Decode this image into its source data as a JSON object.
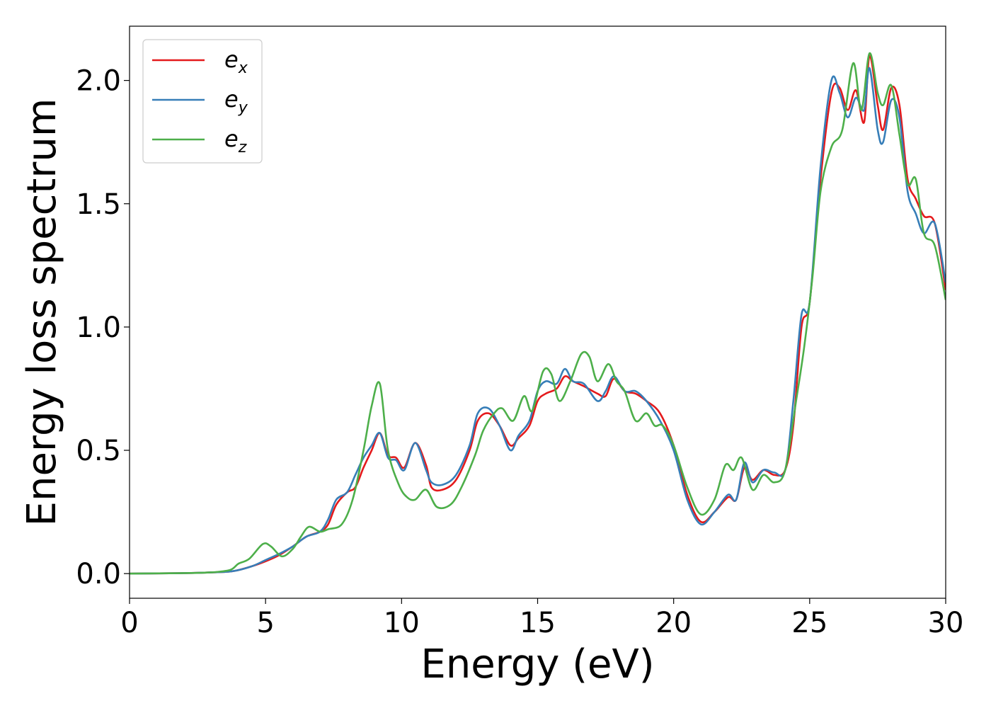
{
  "chart_data": {
    "type": "line",
    "xlabel": "Energy (eV)",
    "ylabel": "Energy loss spectrum",
    "xlim": [
      0,
      30
    ],
    "ylim": [
      -0.1,
      2.22
    ],
    "xticks": [
      0,
      5,
      10,
      15,
      20,
      25,
      30
    ],
    "xtick_labels": [
      "0",
      "5",
      "10",
      "15",
      "20",
      "25",
      "30"
    ],
    "yticks": [
      0.0,
      0.5,
      1.0,
      1.5,
      2.0
    ],
    "ytick_labels": [
      "0.0",
      "0.5",
      "1.0",
      "1.5",
      "2.0"
    ],
    "grid": false,
    "legend": {
      "position": "top-left"
    },
    "series": [
      {
        "name": "e_x",
        "base": "e",
        "sub": "x",
        "color": "#e41a1c",
        "points": [
          [
            0,
            0
          ],
          [
            2,
            0.002
          ],
          [
            3,
            0.005
          ],
          [
            3.8,
            0.01
          ],
          [
            4.5,
            0.03
          ],
          [
            5,
            0.05
          ],
          [
            5.5,
            0.075
          ],
          [
            6,
            0.11
          ],
          [
            6.5,
            0.15
          ],
          [
            7,
            0.17
          ],
          [
            7.3,
            0.2
          ],
          [
            7.6,
            0.28
          ],
          [
            8,
            0.33
          ],
          [
            8.3,
            0.35
          ],
          [
            8.6,
            0.43
          ],
          [
            8.9,
            0.5
          ],
          [
            9.2,
            0.57
          ],
          [
            9.5,
            0.48
          ],
          [
            9.8,
            0.47
          ],
          [
            10.1,
            0.43
          ],
          [
            10.5,
            0.53
          ],
          [
            10.9,
            0.44
          ],
          [
            11.1,
            0.35
          ],
          [
            11.5,
            0.34
          ],
          [
            12,
            0.38
          ],
          [
            12.5,
            0.5
          ],
          [
            12.8,
            0.62
          ],
          [
            13.2,
            0.65
          ],
          [
            13.6,
            0.6
          ],
          [
            14,
            0.52
          ],
          [
            14.3,
            0.55
          ],
          [
            14.7,
            0.6
          ],
          [
            15,
            0.7
          ],
          [
            15.3,
            0.73
          ],
          [
            15.7,
            0.75
          ],
          [
            16,
            0.8
          ],
          [
            16.3,
            0.78
          ],
          [
            16.7,
            0.76
          ],
          [
            17.2,
            0.73
          ],
          [
            17.5,
            0.72
          ],
          [
            17.8,
            0.79
          ],
          [
            18.2,
            0.74
          ],
          [
            18.6,
            0.73
          ],
          [
            19,
            0.7
          ],
          [
            19.5,
            0.65
          ],
          [
            20,
            0.52
          ],
          [
            20.5,
            0.32
          ],
          [
            21,
            0.21
          ],
          [
            21.5,
            0.25
          ],
          [
            22,
            0.31
          ],
          [
            22.3,
            0.3
          ],
          [
            22.6,
            0.43
          ],
          [
            22.9,
            0.38
          ],
          [
            23.3,
            0.42
          ],
          [
            23.7,
            0.4
          ],
          [
            24.1,
            0.42
          ],
          [
            24.4,
            0.6
          ],
          [
            24.7,
            1.0
          ],
          [
            25,
            1.1
          ],
          [
            25.4,
            1.6
          ],
          [
            25.8,
            1.95
          ],
          [
            26.1,
            1.97
          ],
          [
            26.4,
            1.88
          ],
          [
            26.7,
            1.96
          ],
          [
            27,
            1.83
          ],
          [
            27.2,
            2.1
          ],
          [
            27.5,
            1.9
          ],
          [
            27.7,
            1.8
          ],
          [
            28,
            1.97
          ],
          [
            28.3,
            1.9
          ],
          [
            28.6,
            1.6
          ],
          [
            28.9,
            1.52
          ],
          [
            29.2,
            1.45
          ],
          [
            29.6,
            1.42
          ],
          [
            30,
            1.15
          ]
        ]
      },
      {
        "name": "e_y",
        "base": "e",
        "sub": "y",
        "color": "#377eb8",
        "points": [
          [
            0,
            0
          ],
          [
            2,
            0.002
          ],
          [
            3,
            0.005
          ],
          [
            3.8,
            0.01
          ],
          [
            4.5,
            0.03
          ],
          [
            5,
            0.055
          ],
          [
            5.5,
            0.08
          ],
          [
            6,
            0.11
          ],
          [
            6.5,
            0.15
          ],
          [
            7,
            0.17
          ],
          [
            7.3,
            0.22
          ],
          [
            7.6,
            0.3
          ],
          [
            8,
            0.33
          ],
          [
            8.3,
            0.4
          ],
          [
            8.6,
            0.47
          ],
          [
            8.9,
            0.52
          ],
          [
            9.2,
            0.57
          ],
          [
            9.5,
            0.47
          ],
          [
            9.8,
            0.46
          ],
          [
            10.1,
            0.42
          ],
          [
            10.5,
            0.53
          ],
          [
            10.9,
            0.42
          ],
          [
            11.1,
            0.37
          ],
          [
            11.5,
            0.36
          ],
          [
            12,
            0.4
          ],
          [
            12.5,
            0.52
          ],
          [
            12.8,
            0.65
          ],
          [
            13.2,
            0.67
          ],
          [
            13.6,
            0.6
          ],
          [
            14,
            0.5
          ],
          [
            14.3,
            0.56
          ],
          [
            14.7,
            0.62
          ],
          [
            15,
            0.74
          ],
          [
            15.3,
            0.78
          ],
          [
            15.7,
            0.77
          ],
          [
            16,
            0.83
          ],
          [
            16.3,
            0.78
          ],
          [
            16.7,
            0.77
          ],
          [
            17.2,
            0.7
          ],
          [
            17.5,
            0.74
          ],
          [
            17.8,
            0.8
          ],
          [
            18.2,
            0.74
          ],
          [
            18.6,
            0.74
          ],
          [
            19,
            0.7
          ],
          [
            19.5,
            0.62
          ],
          [
            20,
            0.5
          ],
          [
            20.5,
            0.3
          ],
          [
            21,
            0.2
          ],
          [
            21.5,
            0.25
          ],
          [
            22,
            0.32
          ],
          [
            22.3,
            0.3
          ],
          [
            22.6,
            0.45
          ],
          [
            22.9,
            0.37
          ],
          [
            23.3,
            0.42
          ],
          [
            23.7,
            0.41
          ],
          [
            24.1,
            0.42
          ],
          [
            24.4,
            0.7
          ],
          [
            24.7,
            1.05
          ],
          [
            25,
            1.1
          ],
          [
            25.4,
            1.65
          ],
          [
            25.8,
            2.0
          ],
          [
            26.1,
            1.95
          ],
          [
            26.4,
            1.85
          ],
          [
            26.7,
            1.93
          ],
          [
            27,
            1.88
          ],
          [
            27.2,
            2.05
          ],
          [
            27.5,
            1.8
          ],
          [
            27.7,
            1.75
          ],
          [
            28,
            1.92
          ],
          [
            28.3,
            1.85
          ],
          [
            28.6,
            1.55
          ],
          [
            28.9,
            1.46
          ],
          [
            29.2,
            1.38
          ],
          [
            29.6,
            1.42
          ],
          [
            30,
            1.18
          ]
        ]
      },
      {
        "name": "e_z",
        "base": "e",
        "sub": "z",
        "color": "#4daf4a",
        "points": [
          [
            0,
            0
          ],
          [
            2,
            0.002
          ],
          [
            3,
            0.005
          ],
          [
            3.7,
            0.015
          ],
          [
            4,
            0.04
          ],
          [
            4.4,
            0.06
          ],
          [
            4.9,
            0.12
          ],
          [
            5.2,
            0.11
          ],
          [
            5.6,
            0.07
          ],
          [
            6,
            0.1
          ],
          [
            6.3,
            0.15
          ],
          [
            6.6,
            0.19
          ],
          [
            7,
            0.17
          ],
          [
            7.3,
            0.18
          ],
          [
            7.8,
            0.2
          ],
          [
            8.2,
            0.3
          ],
          [
            8.6,
            0.5
          ],
          [
            8.9,
            0.68
          ],
          [
            9.2,
            0.77
          ],
          [
            9.5,
            0.5
          ],
          [
            9.9,
            0.36
          ],
          [
            10.2,
            0.31
          ],
          [
            10.5,
            0.3
          ],
          [
            10.9,
            0.34
          ],
          [
            11.3,
            0.27
          ],
          [
            11.8,
            0.28
          ],
          [
            12.2,
            0.35
          ],
          [
            12.7,
            0.48
          ],
          [
            13,
            0.58
          ],
          [
            13.4,
            0.65
          ],
          [
            13.7,
            0.67
          ],
          [
            14.1,
            0.62
          ],
          [
            14.5,
            0.72
          ],
          [
            14.8,
            0.66
          ],
          [
            15.2,
            0.82
          ],
          [
            15.5,
            0.81
          ],
          [
            15.8,
            0.7
          ],
          [
            16.2,
            0.78
          ],
          [
            16.6,
            0.89
          ],
          [
            16.9,
            0.88
          ],
          [
            17.2,
            0.78
          ],
          [
            17.6,
            0.85
          ],
          [
            17.9,
            0.78
          ],
          [
            18.2,
            0.74
          ],
          [
            18.6,
            0.62
          ],
          [
            19,
            0.65
          ],
          [
            19.3,
            0.6
          ],
          [
            19.6,
            0.6
          ],
          [
            20,
            0.52
          ],
          [
            20.5,
            0.35
          ],
          [
            21,
            0.24
          ],
          [
            21.5,
            0.3
          ],
          [
            21.9,
            0.44
          ],
          [
            22.2,
            0.42
          ],
          [
            22.5,
            0.47
          ],
          [
            22.9,
            0.34
          ],
          [
            23.3,
            0.4
          ],
          [
            23.7,
            0.37
          ],
          [
            24.1,
            0.42
          ],
          [
            24.5,
            0.7
          ],
          [
            24.8,
            0.92
          ],
          [
            25.1,
            1.2
          ],
          [
            25.4,
            1.55
          ],
          [
            25.8,
            1.73
          ],
          [
            26.2,
            1.8
          ],
          [
            26.6,
            2.07
          ],
          [
            26.9,
            1.88
          ],
          [
            27.2,
            2.11
          ],
          [
            27.5,
            1.95
          ],
          [
            27.7,
            1.9
          ],
          [
            28,
            1.98
          ],
          [
            28.3,
            1.78
          ],
          [
            28.6,
            1.58
          ],
          [
            28.9,
            1.6
          ],
          [
            29.2,
            1.38
          ],
          [
            29.6,
            1.33
          ],
          [
            30,
            1.11
          ]
        ]
      }
    ]
  }
}
